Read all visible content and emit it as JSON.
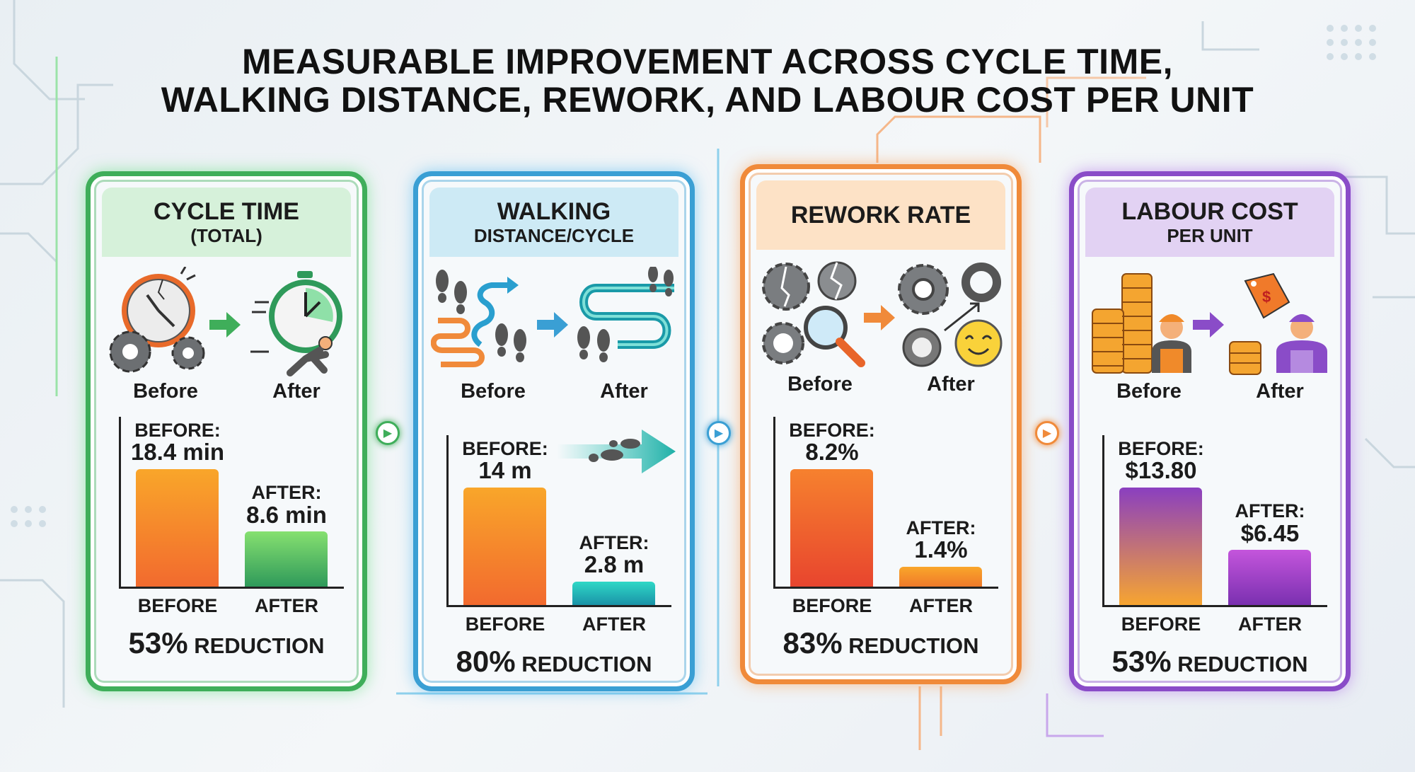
{
  "title": {
    "line1": "MEASURABLE IMPROVEMENT ACROSS CYCLE TIME,",
    "line2": "WALKING DISTANCE, REWORK, AND LABOUR COST PER UNIT"
  },
  "cards": [
    {
      "title": "CYCLE TIME",
      "subtitle": "(TOTAL)",
      "before_label": "Before",
      "after_label": "After",
      "before_key": "BEFORE:",
      "before_value": "18.4 min",
      "after_key": "AFTER:",
      "after_value": "8.6 min",
      "axis_before": "BEFORE",
      "axis_after": "AFTER",
      "reduction_pct": "53%",
      "reduction_word": " REDUCTION",
      "icon_before": "broken-clock-gears-icon",
      "icon_after": "stopwatch-runner-icon",
      "color": "#3fae5a",
      "header_bg": "#d6f1da",
      "before_grad": [
        "#f9a62a",
        "#f26a2e"
      ],
      "after_grad": [
        "#86e070",
        "#2f9a5a"
      ]
    },
    {
      "title": "WALKING",
      "subtitle": "DISTANCE/CYCLE",
      "before_label": "Before",
      "after_label": "After",
      "before_key": "BEFORE:",
      "before_value": "14 m",
      "after_key": "AFTER:",
      "after_value": "2.8 m",
      "axis_before": "BEFORE",
      "axis_after": "AFTER",
      "reduction_pct": "80%",
      "reduction_word": " REDUCTION",
      "icon_before": "footprints-winding-path-icon",
      "icon_after": "footprints-short-path-icon",
      "color": "#3a9fd4",
      "header_bg": "#cdeaf5",
      "before_grad": [
        "#f9a62a",
        "#f26a2e"
      ],
      "after_grad": [
        "#2fd8c6",
        "#1a93a8"
      ]
    },
    {
      "title": "REWORK RATE",
      "subtitle": "",
      "before_label": "Before",
      "after_label": "After",
      "before_key": "BEFORE:",
      "before_value": "8.2%",
      "after_key": "AFTER:",
      "after_value": "1.4%",
      "axis_before": "BEFORE",
      "axis_after": "AFTER",
      "reduction_pct": "83%",
      "reduction_word": " REDUCTION",
      "icon_before": "broken-gears-magnifier-icon",
      "icon_after": "gears-smiley-icon",
      "color": "#f08a3a",
      "header_bg": "#fde2c6",
      "before_grad": [
        "#f6812e",
        "#e8452e"
      ],
      "after_grad": [
        "#f9a62a",
        "#f07a2a"
      ]
    },
    {
      "title": "LABOUR COST",
      "subtitle": "PER UNIT",
      "before_label": "Before",
      "after_label": "After",
      "before_key": "BEFORE:",
      "before_value": "$13.80",
      "after_key": "AFTER:",
      "after_value": "$6.45",
      "axis_before": "BEFORE",
      "axis_after": "AFTER",
      "reduction_pct": "53%",
      "reduction_word": " REDUCTION",
      "icon_before": "coin-stacks-worker-icon",
      "icon_after": "price-tag-coins-worker-icon",
      "color": "#8a4cc8",
      "header_bg": "#e2d2f3",
      "before_grad": [
        "#8a3fc0",
        "#f7a530"
      ],
      "after_grad": [
        "#c455dc",
        "#7a30b0"
      ]
    }
  ],
  "chart_data": [
    {
      "type": "bar",
      "title": "CYCLE TIME (TOTAL)",
      "categories": [
        "BEFORE",
        "AFTER"
      ],
      "values": [
        18.4,
        8.6
      ],
      "unit": "min",
      "reduction": "53%"
    },
    {
      "type": "bar",
      "title": "WALKING DISTANCE/CYCLE",
      "categories": [
        "BEFORE",
        "AFTER"
      ],
      "values": [
        14,
        2.8
      ],
      "unit": "m",
      "reduction": "80%"
    },
    {
      "type": "bar",
      "title": "REWORK RATE",
      "categories": [
        "BEFORE",
        "AFTER"
      ],
      "values": [
        8.2,
        1.4
      ],
      "unit": "%",
      "reduction": "83%"
    },
    {
      "type": "bar",
      "title": "LABOUR COST PER UNIT",
      "categories": [
        "BEFORE",
        "AFTER"
      ],
      "values": [
        13.8,
        6.45
      ],
      "unit": "$",
      "reduction": "53%"
    }
  ]
}
